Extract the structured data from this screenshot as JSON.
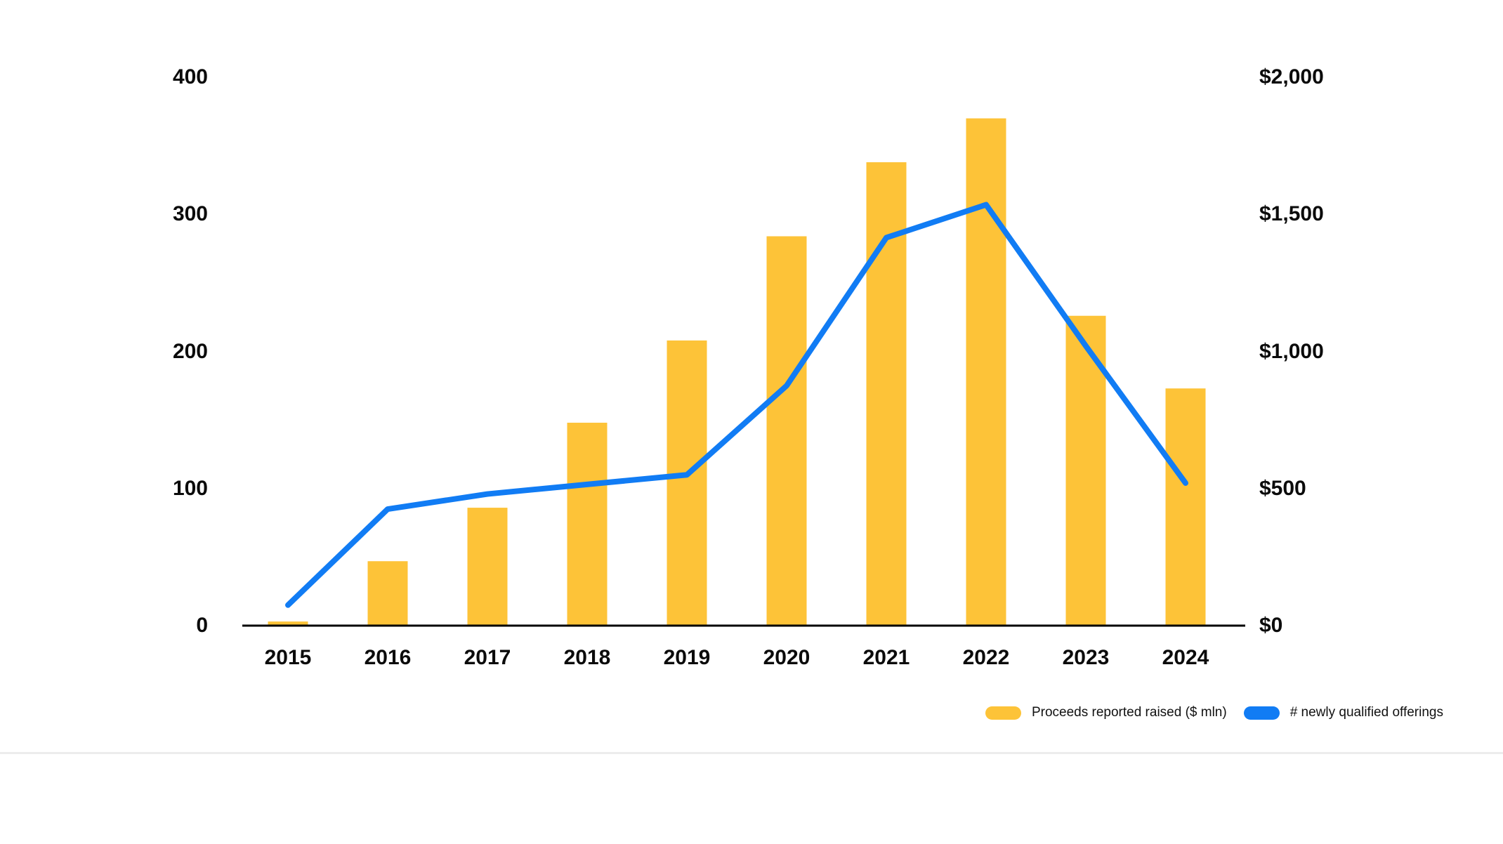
{
  "page": {
    "background": "#ffffff"
  },
  "chart_data": {
    "type": "bar",
    "subtype": "bar+line combo, dual axis",
    "categories": [
      "2015",
      "2016",
      "2017",
      "2018",
      "2019",
      "2020",
      "2021",
      "2022",
      "2023",
      "2024"
    ],
    "series": [
      {
        "name": "Proceeds reported raised ($ mln)",
        "type": "bar",
        "axis": "right",
        "color": "#FDC338",
        "values": [
          15,
          235,
          430,
          740,
          1040,
          1420,
          1690,
          1850,
          1130,
          865
        ]
      },
      {
        "name": "# newly qualified offerings",
        "type": "line",
        "axis": "left",
        "color": "#117CF4",
        "values": [
          15,
          85,
          96,
          103,
          110,
          175,
          283,
          307,
          204,
          104
        ]
      }
    ],
    "title": "",
    "xlabel": "",
    "ylabel_left": "",
    "ylabel_right": "",
    "left_axis": {
      "min": 0,
      "max": 400,
      "ticks": [
        {
          "value": 0,
          "label": "0"
        },
        {
          "value": 100,
          "label": "100"
        },
        {
          "value": 200,
          "label": "200"
        },
        {
          "value": 300,
          "label": "300"
        },
        {
          "value": 400,
          "label": "400"
        }
      ]
    },
    "right_axis": {
      "min": 0,
      "max": 2000,
      "ticks": [
        {
          "value": 0,
          "label": "$0"
        },
        {
          "value": 500,
          "label": "$500"
        },
        {
          "value": 1000,
          "label": "$1,000"
        },
        {
          "value": 1500,
          "label": "$1,500"
        },
        {
          "value": 2000,
          "label": "$2,000"
        }
      ]
    },
    "grid": false,
    "legend_position": "bottom-right",
    "axis_line_color": "#000000"
  },
  "legend": {
    "items": [
      {
        "label": "Proceeds reported raised ($ mln)",
        "color": "#FDC338"
      },
      {
        "label": "# newly qualified offerings",
        "color": "#117CF4"
      }
    ]
  }
}
